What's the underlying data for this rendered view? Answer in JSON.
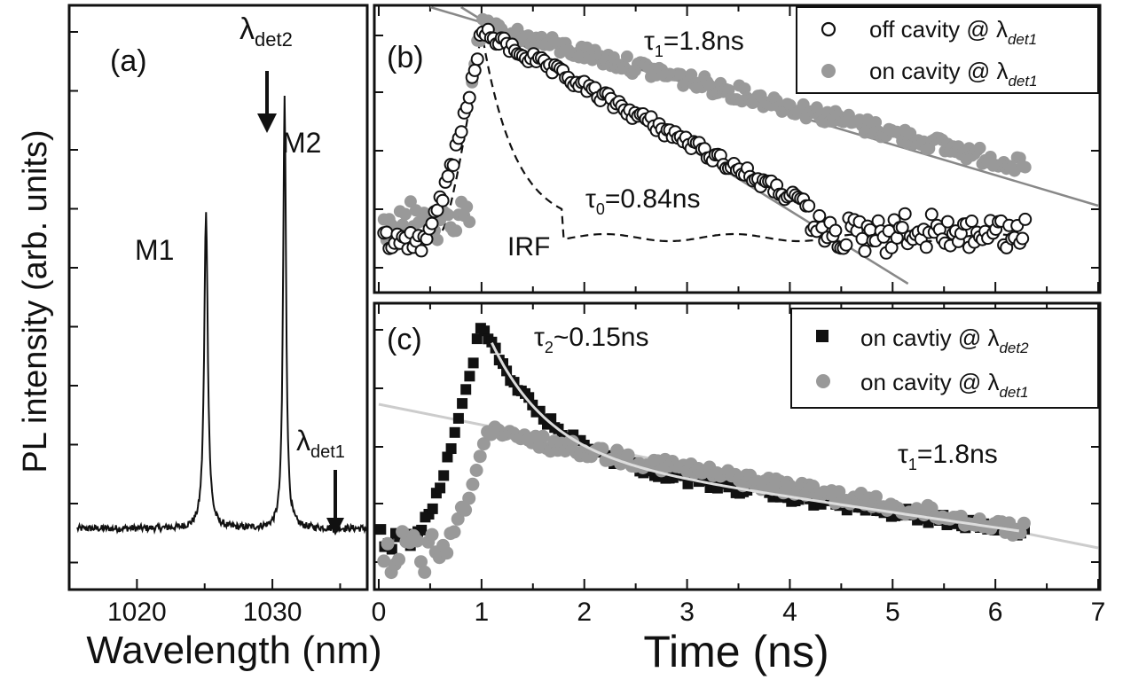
{
  "chart_data": [
    {
      "panel": "a",
      "type": "line",
      "panel_label": "(a)",
      "xlabel": "Wavelength (nm)",
      "ylabel": "PL intensity (arb. units)",
      "xlim": [
        1015,
        1037
      ],
      "ylim": [
        0,
        100
      ],
      "x_ticks": [
        1020,
        1030
      ],
      "y_scale": "log",
      "grid": false,
      "peaks": [
        {
          "label": "M1",
          "x": 1025.1,
          "height": 55
        },
        {
          "label": "M2",
          "x": 1030.9,
          "height": 72
        }
      ],
      "baseline": 6,
      "annotations": [
        {
          "text": "λ",
          "sub": "det2",
          "arrow_at": 1030.9
        },
        {
          "text": "λ",
          "sub": "det1",
          "arrow_at": 1035.7
        }
      ]
    },
    {
      "panel": "b",
      "type": "scatter",
      "panel_label": "(b)",
      "xlabel": "Time (ns)",
      "xlim": [
        0,
        7
      ],
      "y_scale": "log",
      "legend_position": "top-right",
      "series": [
        {
          "name": "off cavity @ λdet1",
          "marker": "open-circle",
          "color": "#111111",
          "rise_center": 0.75,
          "peak_t": 1.05,
          "decay_tau": 0.84,
          "floor": 0.22
        },
        {
          "name": "on cavity @ λdet1",
          "marker": "filled-circle",
          "color": "#999999",
          "rise_center": 0.75,
          "peak_t": 1.0,
          "decay_tau": 1.8,
          "floor": 0.22
        }
      ],
      "fits": [
        {
          "label_main": "τ",
          "label_sub": "1",
          "label_rest": "=1.8ns",
          "tau": 1.8
        },
        {
          "label_main": "τ",
          "label_sub": "0",
          "label_rest": "=0.84ns",
          "tau": 0.84
        }
      ],
      "irf_label": "IRF"
    },
    {
      "panel": "c",
      "type": "scatter",
      "panel_label": "(c)",
      "xlabel": "Time (ns)",
      "xlim": [
        0,
        7
      ],
      "x_ticks": [
        0,
        1,
        2,
        3,
        4,
        5,
        6,
        7
      ],
      "y_scale": "log",
      "legend_position": "top-right",
      "series": [
        {
          "name": "on cavtiy @ λdet2",
          "marker": "filled-square",
          "color": "#111111",
          "peak_t": 1.0,
          "fast_tau": 0.15,
          "slow_tau": 1.8
        },
        {
          "name": "on cavity @ λdet1",
          "marker": "filled-circle",
          "color": "#999999",
          "peak_t": 1.05,
          "decay_tau": 1.8
        }
      ],
      "fits": [
        {
          "label_main": "τ",
          "label_sub": "2",
          "label_rest": "~0.15ns",
          "tau": 0.15
        },
        {
          "label_main": "τ",
          "label_sub": "1",
          "label_rest": "=1.8ns",
          "tau": 1.8
        }
      ]
    }
  ],
  "labels": {
    "panel_a": "(a)",
    "panel_b": "(b)",
    "panel_c": "(c)",
    "ylabel": "PL intensity (arb. units)",
    "xlabel_a": "Wavelength (nm)",
    "xlabel_bc": "Time (ns)",
    "m1": "M1",
    "m2": "M2",
    "lambda": "λ",
    "det1": "det1",
    "det2": "det2",
    "irf": "IRF",
    "tau1_b_sub": "1",
    "tau1_b_rest": "=1.8ns",
    "tau0_sub": "0",
    "tau0_rest": "=0.84ns",
    "tau2_sub": "2",
    "tau2_rest": "~0.15ns",
    "tau1_c_sub": "1",
    "tau1_c_rest": "=1.8ns",
    "tau": "τ",
    "leg_b1_main": "off cavity @ λ",
    "leg_b1_sub": "det1",
    "leg_b2_main": "on cavity @ λ",
    "leg_b2_sub": "det1",
    "leg_c1_main": "on cavtiy @ λ",
    "leg_c1_sub": "det2",
    "leg_c2_main": "on cavity @ λ",
    "leg_c2_sub": "det1",
    "xtick_a": [
      "1020",
      "1030"
    ],
    "xtick_t": [
      "0",
      "1",
      "2",
      "3",
      "4",
      "5",
      "6",
      "7"
    ]
  },
  "colors": {
    "black": "#111111",
    "gray": "#999999",
    "fit_gray": "#888888",
    "fit_light": "#cccccc"
  }
}
